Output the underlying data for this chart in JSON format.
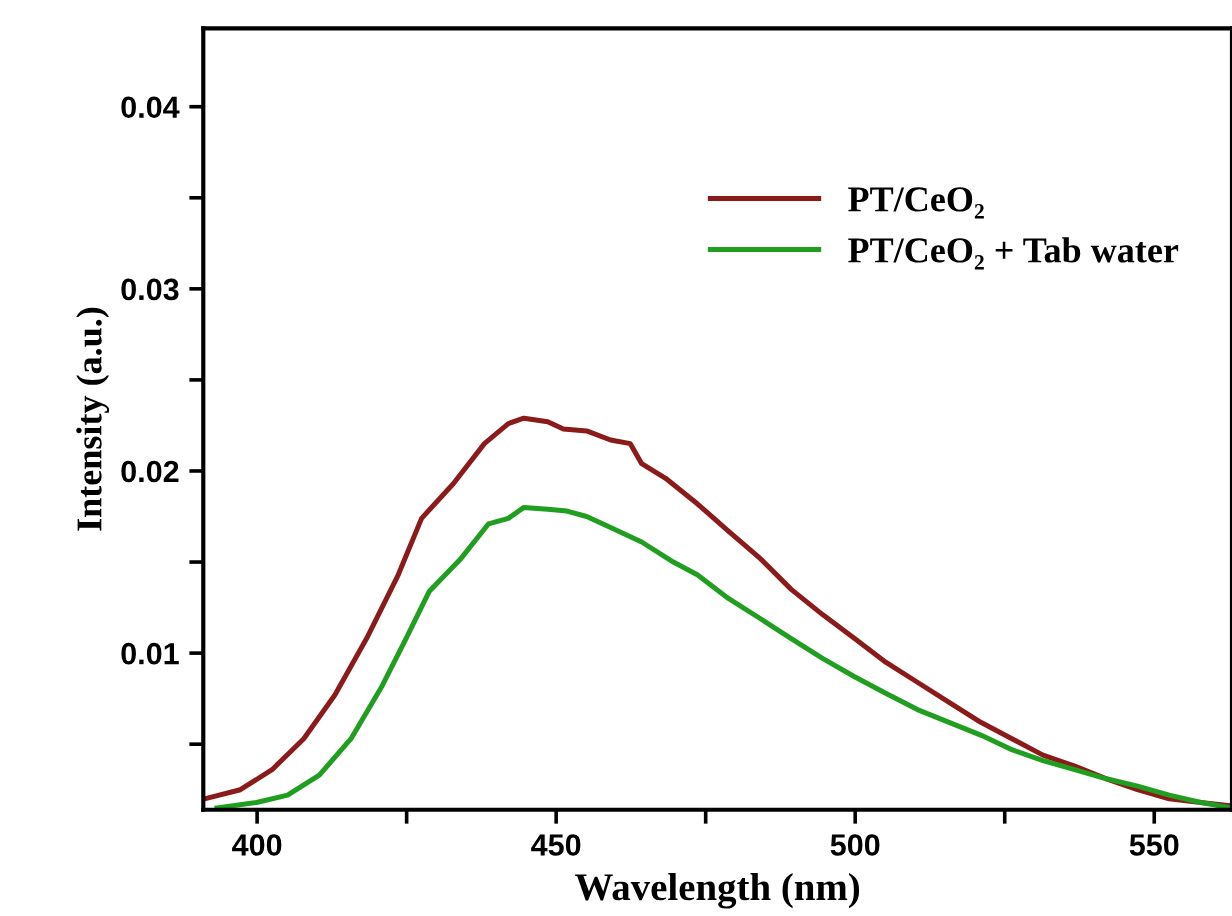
{
  "chart_data": {
    "type": "line",
    "xlabel": "Wavelength (nm)",
    "ylabel": "Intensity (a.u.)",
    "xlim": [
      391,
      563
    ],
    "ylim": [
      0.0014,
      0.0443
    ],
    "xticks": [
      400,
      {
        "value": 425,
        "label": null
      },
      450,
      {
        "value": 475,
        "label": null
      },
      500,
      {
        "value": 525,
        "label": null
      },
      550
    ],
    "yticks": [
      {
        "value": 0.005,
        "label": null
      },
      0.01,
      {
        "value": 0.015,
        "label": null
      },
      0.02,
      {
        "value": 0.025,
        "label": null
      },
      0.03,
      {
        "value": 0.035,
        "label": null
      },
      0.04
    ],
    "grid": false,
    "legend": "top right",
    "marker": "none",
    "line_style": "solid",
    "series": [
      {
        "name": "PT/CeO₂",
        "color": "#8b1a1a",
        "x": [
          391.2,
          397.2,
          402.5,
          407.8,
          413.0,
          418.3,
          423.6,
          427.5,
          432.8,
          438.0,
          442.0,
          444.6,
          448.6,
          451.2,
          455.1,
          459.1,
          462.4,
          464.3,
          468.3,
          473.6,
          478.8,
          484.1,
          489.3,
          494.6,
          499.9,
          505.1,
          510.4,
          515.7,
          521.0,
          526.2,
          531.4,
          536.7,
          542.0,
          547.2,
          552.5,
          557.8,
          563.0
        ],
        "values": [
          0.002,
          0.0025,
          0.0036,
          0.0053,
          0.0077,
          0.0108,
          0.0143,
          0.0174,
          0.0193,
          0.0215,
          0.0226,
          0.0229,
          0.0227,
          0.0223,
          0.0222,
          0.0217,
          0.0215,
          0.0204,
          0.0196,
          0.0182,
          0.0167,
          0.0152,
          0.0135,
          0.0121,
          0.0108,
          0.0095,
          0.0084,
          0.0073,
          0.0062,
          0.0053,
          0.0044,
          0.0038,
          0.0031,
          0.0025,
          0.002,
          0.0018,
          0.0016
        ]
      },
      {
        "name": "PT/CeO₂ + Tab water",
        "color": "#1f9e1f",
        "x": [
          393.3,
          399.9,
          405.1,
          410.4,
          415.7,
          420.9,
          424.9,
          428.8,
          434.1,
          438.7,
          442.0,
          444.6,
          448.6,
          451.8,
          455.1,
          459.1,
          464.3,
          469.6,
          473.6,
          478.8,
          484.1,
          489.3,
          494.6,
          499.9,
          505.1,
          510.4,
          515.7,
          521.0,
          526.2,
          531.4,
          536.7,
          542.0,
          547.2,
          552.5,
          557.8,
          563.0
        ],
        "values": [
          0.0015,
          0.0018,
          0.0022,
          0.0033,
          0.0053,
          0.0082,
          0.0108,
          0.0134,
          0.0152,
          0.0171,
          0.0174,
          0.018,
          0.0179,
          0.0178,
          0.0175,
          0.0169,
          0.0161,
          0.015,
          0.0143,
          0.013,
          0.0119,
          0.0108,
          0.0097,
          0.0087,
          0.0078,
          0.0069,
          0.0062,
          0.0055,
          0.0047,
          0.0041,
          0.0036,
          0.0031,
          0.0027,
          0.0022,
          0.0018,
          0.0015
        ]
      }
    ]
  }
}
